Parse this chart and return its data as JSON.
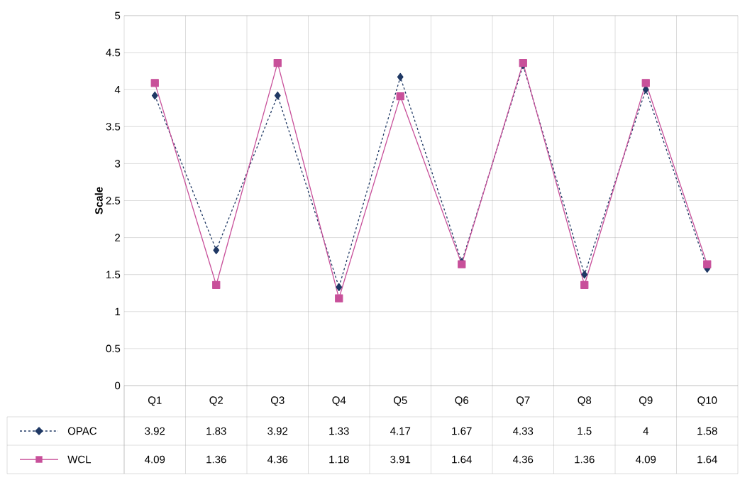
{
  "chart_data": {
    "type": "line",
    "ylabel": "Scale",
    "categories": [
      "Q1",
      "Q2",
      "Q3",
      "Q4",
      "Q5",
      "Q6",
      "Q7",
      "Q8",
      "Q9",
      "Q10"
    ],
    "series": [
      {
        "name": "OPAC",
        "color": "#1f3864",
        "marker": "diamond",
        "line_style": "dashed",
        "values": [
          3.92,
          1.83,
          3.92,
          1.33,
          4.17,
          1.67,
          4.33,
          1.5,
          4,
          1.58
        ]
      },
      {
        "name": "WCL",
        "color": "#c8509a",
        "marker": "square",
        "line_style": "solid",
        "values": [
          4.09,
          1.36,
          4.36,
          1.18,
          3.91,
          1.64,
          4.36,
          1.36,
          4.09,
          1.64
        ]
      }
    ],
    "ylim": [
      0,
      5
    ],
    "yticks": [
      0,
      0.5,
      1,
      1.5,
      2,
      2.5,
      3,
      3.5,
      4,
      4.5,
      5
    ],
    "grid": true,
    "legend": "bottom left",
    "data_labels": true
  }
}
